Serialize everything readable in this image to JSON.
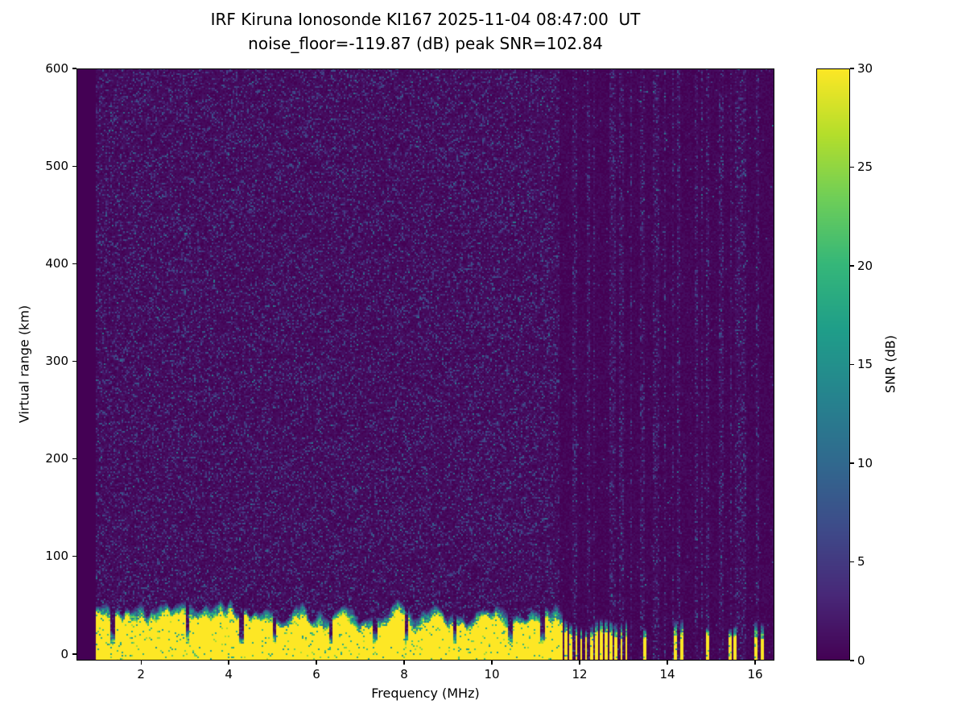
{
  "chart_data": {
    "type": "heatmap",
    "title_line1": "IRF Kiruna Ionosonde KI167 2025-11-04 08:47:00  UT",
    "title_line2": "noise_floor=-119.87 (dB) peak SNR=102.84",
    "station": "IRF Kiruna Ionosonde KI167",
    "timestamp_ut": "2025-11-04 08:47:00",
    "noise_floor_db": -119.87,
    "peak_snr_db": 102.84,
    "xlabel": "Frequency (MHz)",
    "ylabel": "Virtual range (km)",
    "xlim": [
      0.53,
      16.44
    ],
    "ylim": [
      -6.6,
      600
    ],
    "xticks": [
      2,
      4,
      6,
      8,
      10,
      12,
      14,
      16
    ],
    "yticks": [
      0,
      100,
      200,
      300,
      400,
      500,
      600
    ],
    "grid": false,
    "colorbar": {
      "label": "SNR (dB)",
      "min": 0,
      "max": 30,
      "ticks": [
        0,
        5,
        10,
        15,
        20,
        25,
        30
      ],
      "colormap": "viridis",
      "position": "right"
    },
    "heatmap": {
      "seed": 7,
      "freq_range_mhz": [
        0.98,
        16.44
      ],
      "background_snr_db": 0.4,
      "speckle": {
        "probability": 0.3,
        "snr_min": 1.5,
        "snr_max": 8,
        "bright_probability": 0.006,
        "bright_snr_max": 13
      },
      "striped_noise_above_mhz": 11.55,
      "stripe_block_mhz": 0.06,
      "stripe_noisy_fraction": 0.4,
      "ground_echo": {
        "snr_db": 30,
        "base_top_km": 22,
        "variation_km": 20,
        "ripple_km": 10,
        "fuzz_km": 14,
        "bottom_km": -6.6,
        "continuous_until_mhz": 11.62,
        "notch_freqs_mhz": [
          1.36,
          3.06,
          4.3,
          5.05,
          6.32,
          7.34,
          8.05,
          9.16,
          10.42,
          11.15
        ],
        "bars_mhz": [
          [
            11.65,
            11.72
          ],
          [
            11.77,
            11.84
          ],
          [
            11.89,
            11.96
          ],
          [
            12.0,
            12.07
          ],
          [
            12.12,
            12.18
          ],
          [
            12.23,
            12.3
          ],
          [
            12.34,
            12.41
          ],
          [
            12.46,
            12.53
          ],
          [
            12.57,
            12.64
          ],
          [
            12.69,
            12.76
          ],
          [
            12.8,
            12.87
          ],
          [
            12.92,
            12.99
          ],
          [
            13.03,
            13.1
          ],
          [
            13.46,
            13.54
          ],
          [
            14.14,
            14.22
          ],
          [
            14.28,
            14.36
          ],
          [
            14.87,
            14.95
          ],
          [
            15.38,
            15.46
          ],
          [
            15.51,
            15.59
          ],
          [
            15.98,
            16.06
          ],
          [
            16.11,
            16.19
          ]
        ]
      }
    }
  }
}
